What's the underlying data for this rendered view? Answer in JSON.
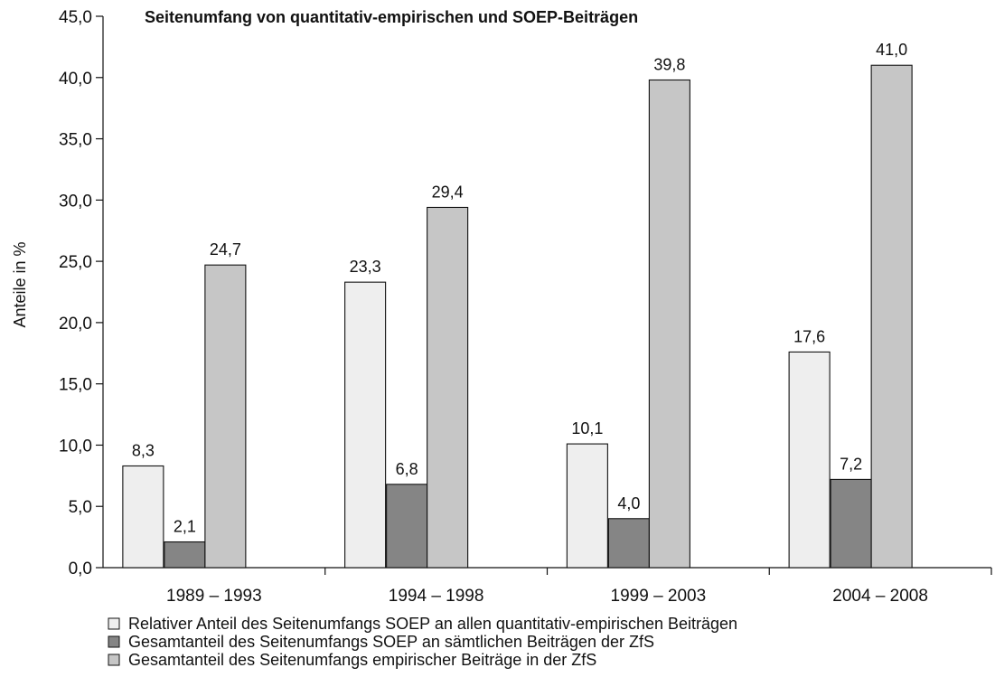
{
  "chart_data": {
    "type": "bar",
    "title": "Seitenumfang von quantitativ-empirischen und SOEP-Beiträgen",
    "xlabel": "",
    "ylabel": "Anteile in %",
    "categories": [
      "1989 – 1993",
      "1994 – 1998",
      "1999 – 2003",
      "2004 – 2008"
    ],
    "series": [
      {
        "name": "Relativer Anteil des Seitenumfangs SOEP an allen quantitativ-empirischen Beiträgen",
        "values": [
          8.3,
          23.3,
          10.1,
          17.6
        ],
        "labels": [
          "8,3",
          "23,3",
          "10,1",
          "17,6"
        ],
        "color": "#eeeeee"
      },
      {
        "name": "Gesamtanteil des Seitenumfangs SOEP an sämtlichen Beiträgen der ZfS",
        "values": [
          2.1,
          6.8,
          4.0,
          7.2
        ],
        "labels": [
          "2,1",
          "6,8",
          "4,0",
          "7,2"
        ],
        "color": "#858585"
      },
      {
        "name": "Gesamtanteil des Seitenumfangs empirischer Beiträge in der ZfS",
        "values": [
          24.7,
          29.4,
          39.8,
          41.0
        ],
        "labels": [
          "24,7",
          "29,4",
          "39,8",
          "41,0"
        ],
        "color": "#c6c6c6"
      }
    ],
    "ylim": [
      0,
      45
    ],
    "yticks": [
      0,
      5,
      10,
      15,
      20,
      25,
      30,
      35,
      40,
      45
    ],
    "ytick_labels": [
      "0,0",
      "5,0",
      "10,0",
      "15,0",
      "20,0",
      "25,0",
      "30,0",
      "35,0",
      "40,0",
      "45,0"
    ],
    "grid": false,
    "legend_position": "bottom",
    "bar_outline_color": "#111111"
  }
}
